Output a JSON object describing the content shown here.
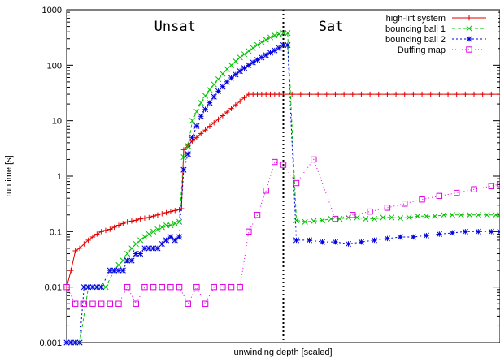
{
  "chart_data": {
    "type": "line",
    "xlabel": "unwinding depth [scaled]",
    "ylabel": "runtime [s]",
    "yscale": "log",
    "ylim": [
      0.001,
      1000
    ],
    "xlim": [
      0,
      100
    ],
    "y_ticks": [
      {
        "value": 0.001,
        "label": "0.001"
      },
      {
        "value": 0.01,
        "label": "0.01"
      },
      {
        "value": 0.1,
        "label": "0.1"
      },
      {
        "value": 1,
        "label": "1"
      },
      {
        "value": 10,
        "label": "10"
      },
      {
        "value": 100,
        "label": "100"
      },
      {
        "value": 1000,
        "label": "1000"
      }
    ],
    "divider_x": 50,
    "regions": [
      {
        "label": "Unsat",
        "x": 25
      },
      {
        "label": "Sat",
        "x": 61
      }
    ],
    "legend_position": "top-right",
    "series": [
      {
        "name": "high-lift system",
        "color": "#e00000",
        "marker": "plus",
        "dash": "",
        "points": [
          [
            0,
            0.01
          ],
          [
            1,
            0.02
          ],
          [
            2,
            0.045
          ],
          [
            3,
            0.05
          ],
          [
            4,
            0.06
          ],
          [
            5,
            0.07
          ],
          [
            6,
            0.08
          ],
          [
            7,
            0.09
          ],
          [
            8,
            0.1
          ],
          [
            9,
            0.105
          ],
          [
            10,
            0.11
          ],
          [
            11,
            0.12
          ],
          [
            12,
            0.13
          ],
          [
            13,
            0.14
          ],
          [
            14,
            0.15
          ],
          [
            15,
            0.155
          ],
          [
            16,
            0.16
          ],
          [
            17,
            0.17
          ],
          [
            18,
            0.175
          ],
          [
            19,
            0.18
          ],
          [
            20,
            0.19
          ],
          [
            21,
            0.2
          ],
          [
            22,
            0.21
          ],
          [
            23,
            0.22
          ],
          [
            24,
            0.23
          ],
          [
            25,
            0.24
          ],
          [
            26,
            0.25
          ],
          [
            26.5,
            0.26
          ],
          [
            27,
            3
          ],
          [
            28,
            3.6
          ],
          [
            29,
            4.3
          ],
          [
            30,
            5
          ],
          [
            31,
            5.9
          ],
          [
            32,
            6.8
          ],
          [
            33,
            7.9
          ],
          [
            34,
            9.2
          ],
          [
            35,
            10.6
          ],
          [
            36,
            12.3
          ],
          [
            37,
            14.3
          ],
          [
            38,
            16.6
          ],
          [
            39,
            19.3
          ],
          [
            40,
            22.4
          ],
          [
            41,
            26
          ],
          [
            42,
            30
          ],
          [
            43,
            30
          ],
          [
            44,
            30
          ],
          [
            45,
            30
          ],
          [
            46,
            30
          ],
          [
            47,
            30
          ],
          [
            48,
            30
          ],
          [
            49,
            30
          ],
          [
            50,
            30
          ],
          [
            52,
            30
          ],
          [
            54,
            30
          ],
          [
            56,
            30
          ],
          [
            58,
            30
          ],
          [
            60,
            30
          ],
          [
            62,
            30
          ],
          [
            64,
            30
          ],
          [
            66,
            30
          ],
          [
            68,
            30
          ],
          [
            70,
            30
          ],
          [
            72,
            30
          ],
          [
            74,
            30
          ],
          [
            76,
            30
          ],
          [
            78,
            30
          ],
          [
            80,
            30
          ],
          [
            82,
            30
          ],
          [
            84,
            30
          ],
          [
            86,
            30
          ],
          [
            88,
            30
          ],
          [
            90,
            30
          ],
          [
            92,
            30
          ],
          [
            94,
            30
          ],
          [
            96,
            30
          ],
          [
            98,
            30
          ],
          [
            100,
            30
          ]
        ]
      },
      {
        "name": "bouncing ball 1",
        "color": "#00c000",
        "marker": "cross",
        "dash": "4,3",
        "points": [
          [
            0,
            0.001
          ],
          [
            1,
            0.001
          ],
          [
            2,
            0.001
          ],
          [
            3,
            0.001
          ],
          [
            5,
            0.01
          ],
          [
            7,
            0.01
          ],
          [
            9,
            0.01
          ],
          [
            11,
            0.02
          ],
          [
            12,
            0.025
          ],
          [
            13,
            0.03
          ],
          [
            14,
            0.04
          ],
          [
            15,
            0.05
          ],
          [
            16,
            0.06
          ],
          [
            17,
            0.07
          ],
          [
            18,
            0.08
          ],
          [
            19,
            0.09
          ],
          [
            20,
            0.1
          ],
          [
            21,
            0.11
          ],
          [
            22,
            0.12
          ],
          [
            23,
            0.13
          ],
          [
            24,
            0.13
          ],
          [
            25,
            0.14
          ],
          [
            26,
            0.15
          ],
          [
            27,
            2.2
          ],
          [
            28,
            3.5
          ],
          [
            29,
            10
          ],
          [
            30,
            14.5
          ],
          [
            31,
            21
          ],
          [
            32,
            28
          ],
          [
            33,
            36
          ],
          [
            34,
            45
          ],
          [
            35,
            56
          ],
          [
            36,
            70
          ],
          [
            37,
            85
          ],
          [
            38,
            100
          ],
          [
            39,
            118
          ],
          [
            40,
            138
          ],
          [
            41,
            158
          ],
          [
            42,
            180
          ],
          [
            43,
            205
          ],
          [
            44,
            232
          ],
          [
            45,
            260
          ],
          [
            46,
            288
          ],
          [
            47,
            318
          ],
          [
            48,
            345
          ],
          [
            49,
            365
          ],
          [
            50,
            380
          ],
          [
            51,
            380
          ],
          [
            53,
            0.16
          ],
          [
            55,
            0.15
          ],
          [
            57,
            0.155
          ],
          [
            59,
            0.16
          ],
          [
            61,
            0.17
          ],
          [
            63,
            0.17
          ],
          [
            65,
            0.18
          ],
          [
            67,
            0.18
          ],
          [
            69,
            0.17
          ],
          [
            71,
            0.17
          ],
          [
            73,
            0.18
          ],
          [
            75,
            0.18
          ],
          [
            77,
            0.175
          ],
          [
            79,
            0.18
          ],
          [
            81,
            0.19
          ],
          [
            83,
            0.19
          ],
          [
            85,
            0.19
          ],
          [
            87,
            0.2
          ],
          [
            89,
            0.2
          ],
          [
            91,
            0.2
          ],
          [
            93,
            0.2
          ],
          [
            95,
            0.2
          ],
          [
            97,
            0.2
          ],
          [
            99,
            0.2
          ],
          [
            100,
            0.2
          ]
        ]
      },
      {
        "name": "bouncing ball 2",
        "color": "#0000e0",
        "marker": "star",
        "dash": "2,3",
        "points": [
          [
            0,
            0.001
          ],
          [
            1,
            0.001
          ],
          [
            2,
            0.001
          ],
          [
            3,
            0.001
          ],
          [
            4,
            0.01
          ],
          [
            5,
            0.01
          ],
          [
            6,
            0.01
          ],
          [
            7,
            0.01
          ],
          [
            8,
            0.01
          ],
          [
            10,
            0.02
          ],
          [
            11,
            0.02
          ],
          [
            12,
            0.02
          ],
          [
            13,
            0.02
          ],
          [
            14,
            0.03
          ],
          [
            15,
            0.03
          ],
          [
            16,
            0.04
          ],
          [
            17,
            0.04
          ],
          [
            18,
            0.05
          ],
          [
            19,
            0.05
          ],
          [
            20,
            0.05
          ],
          [
            21,
            0.05
          ],
          [
            22,
            0.06
          ],
          [
            23,
            0.07
          ],
          [
            24,
            0.08
          ],
          [
            25,
            0.07
          ],
          [
            26,
            0.08
          ],
          [
            27,
            1.3
          ],
          [
            28,
            2.5
          ],
          [
            29,
            5
          ],
          [
            30,
            8
          ],
          [
            31,
            12
          ],
          [
            32,
            16
          ],
          [
            33,
            21
          ],
          [
            34,
            27
          ],
          [
            35,
            34
          ],
          [
            36,
            41
          ],
          [
            37,
            50
          ],
          [
            38,
            59
          ],
          [
            39,
            68
          ],
          [
            40,
            78
          ],
          [
            41,
            89
          ],
          [
            42,
            100
          ],
          [
            43,
            112
          ],
          [
            44,
            125
          ],
          [
            45,
            138
          ],
          [
            46,
            152
          ],
          [
            47,
            168
          ],
          [
            48,
            185
          ],
          [
            49,
            205
          ],
          [
            50,
            230
          ],
          [
            51,
            230
          ],
          [
            53,
            0.07
          ],
          [
            56,
            0.07
          ],
          [
            59,
            0.065
          ],
          [
            62,
            0.065
          ],
          [
            65,
            0.06
          ],
          [
            68,
            0.065
          ],
          [
            71,
            0.07
          ],
          [
            74,
            0.075
          ],
          [
            77,
            0.08
          ],
          [
            80,
            0.08
          ],
          [
            83,
            0.085
          ],
          [
            86,
            0.09
          ],
          [
            89,
            0.095
          ],
          [
            92,
            0.1
          ],
          [
            95,
            0.1
          ],
          [
            98,
            0.1
          ],
          [
            100,
            0.1
          ]
        ]
      },
      {
        "name": "Duffing map",
        "color": "#e000e0",
        "marker": "square",
        "dash": "1,3",
        "points": [
          [
            0,
            0.01
          ],
          [
            2,
            0.005
          ],
          [
            4,
            0.005
          ],
          [
            6,
            0.005
          ],
          [
            8,
            0.005
          ],
          [
            10,
            0.005
          ],
          [
            12,
            0.005
          ],
          [
            14,
            0.01
          ],
          [
            16,
            0.005
          ],
          [
            18,
            0.01
          ],
          [
            20,
            0.01
          ],
          [
            22,
            0.01
          ],
          [
            24,
            0.01
          ],
          [
            26,
            0.01
          ],
          [
            28,
            0.005
          ],
          [
            30,
            0.01
          ],
          [
            32,
            0.005
          ],
          [
            34,
            0.01
          ],
          [
            36,
            0.01
          ],
          [
            38,
            0.01
          ],
          [
            40,
            0.01
          ],
          [
            42,
            0.1
          ],
          [
            44,
            0.2
          ],
          [
            46,
            0.55
          ],
          [
            48,
            1.8
          ],
          [
            50,
            1.6
          ],
          [
            53,
            0.75
          ],
          [
            57,
            2.0
          ],
          [
            62,
            0.17
          ],
          [
            66,
            0.2
          ],
          [
            70,
            0.23
          ],
          [
            74,
            0.27
          ],
          [
            78,
            0.32
          ],
          [
            82,
            0.38
          ],
          [
            86,
            0.44
          ],
          [
            90,
            0.5
          ],
          [
            94,
            0.58
          ],
          [
            98,
            0.66
          ],
          [
            100,
            0.72
          ]
        ]
      }
    ]
  }
}
